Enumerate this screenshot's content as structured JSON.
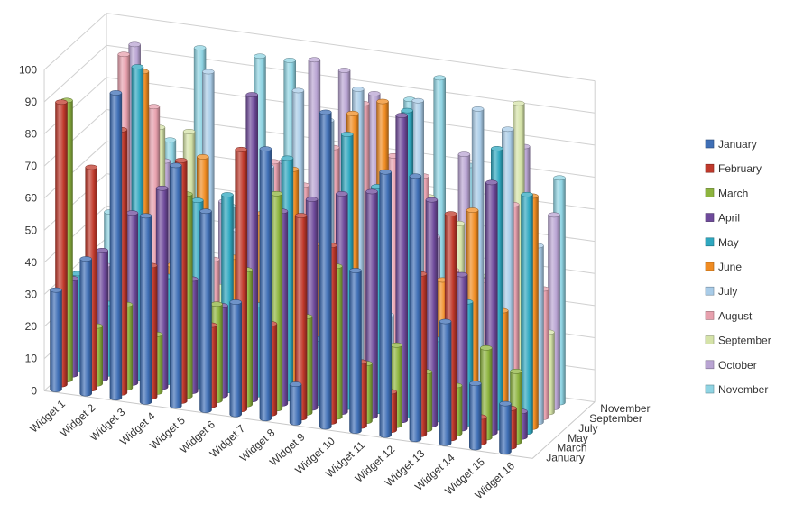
{
  "chart_data": {
    "type": "bar",
    "subtype": "3d-cylinder",
    "title": "",
    "xlabel": "",
    "ylabel": "",
    "ylim": [
      0,
      100
    ],
    "yticks": [
      "0",
      "10",
      "20",
      "30",
      "40",
      "50",
      "60",
      "70",
      "80",
      "90",
      "100"
    ],
    "categories": [
      "Widget 1",
      "Widget 2",
      "Widget 3",
      "Widget 4",
      "Widget 5",
      "Widget 6",
      "Widget 7",
      "Widget 8",
      "Widget 9",
      "Widget 10",
      "Widget 11",
      "Widget 12",
      "Widget 13",
      "Widget 14",
      "Widget 15",
      "Widget 16"
    ],
    "depth_labels": [
      "January",
      "March",
      "May",
      "July",
      "September",
      "November"
    ],
    "legend_position": "right",
    "grid": true,
    "series": [
      {
        "name": "January",
        "color": "#3F6FB6",
        "values": [
          31,
          42,
          95,
          58,
          75,
          62,
          35,
          84,
          12,
          98,
          50,
          82,
          82,
          38,
          20,
          15
        ]
      },
      {
        "name": "February",
        "color": "#C0392B",
        "values": [
          88,
          69,
          82,
          41,
          75,
          25,
          81,
          28,
          63,
          55,
          20,
          12,
          50,
          70,
          8,
          12
        ]
      },
      {
        "name": "March",
        "color": "#8DB43E",
        "values": [
          87,
          18,
          26,
          18,
          63,
          30,
          42,
          67,
          30,
          47,
          18,
          25,
          18,
          15,
          28,
          22
        ]
      },
      {
        "name": "April",
        "color": "#6E4A9B",
        "values": [
          30,
          40,
          53,
          62,
          35,
          28,
          95,
          60,
          65,
          68,
          70,
          95,
          70,
          48,
          78,
          8
        ]
      },
      {
        "name": "May",
        "color": "#2FA8C0",
        "values": [
          30,
          22,
          97,
          33,
          58,
          61,
          28,
          75,
          20,
          85,
          70,
          95,
          25,
          38,
          87,
          74
        ]
      },
      {
        "name": "June",
        "color": "#F08C22",
        "values": [
          22,
          15,
          94,
          35,
          70,
          40,
          55,
          70,
          48,
          90,
          95,
          35,
          42,
          65,
          35,
          72
        ]
      },
      {
        "name": "July",
        "color": "#A9CCE8",
        "values": [
          28,
          32,
          28,
          63,
          95,
          47,
          68,
          93,
          85,
          96,
          27,
          95,
          35,
          95,
          90,
          55
        ]
      },
      {
        "name": "August",
        "color": "#E7A0AD",
        "values": [
          30,
          95,
          80,
          50,
          35,
          45,
          68,
          62,
          75,
          90,
          75,
          70,
          42,
          40,
          65,
          40
        ]
      },
      {
        "name": "September",
        "color": "#D5E3A8",
        "values": [
          30,
          32,
          72,
          72,
          25,
          23,
          22,
          52,
          52,
          24,
          28,
          62,
          55,
          40,
          95,
          25
        ]
      },
      {
        "name": "October",
        "color": "#B9A4D3",
        "values": [
          25,
          95,
          60,
          38,
          50,
          24,
          65,
          98,
          96,
          90,
          30,
          48,
          75,
          35,
          80,
          60
        ]
      },
      {
        "name": "November",
        "color": "#8FD4E3",
        "values": [
          40,
          30,
          65,
          95,
          47,
          95,
          95,
          76,
          74,
          40,
          88,
          96,
          70,
          40,
          42,
          70
        ]
      }
    ]
  }
}
